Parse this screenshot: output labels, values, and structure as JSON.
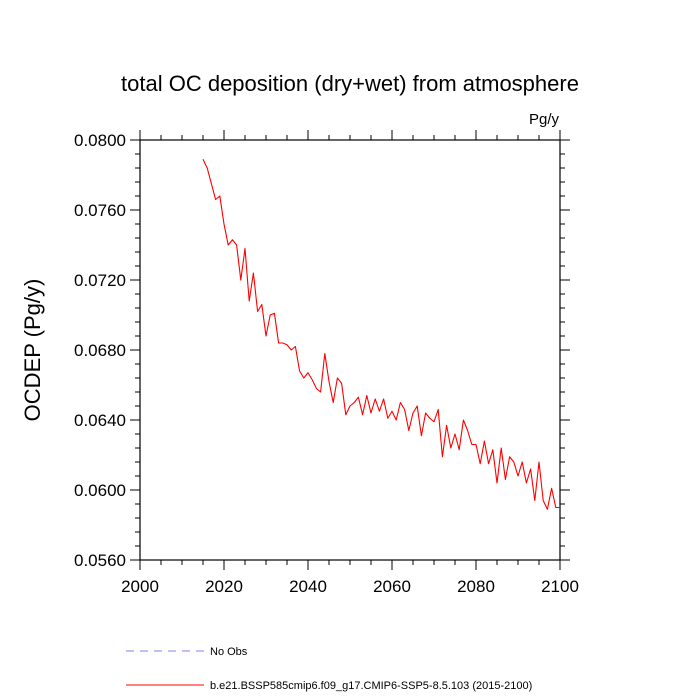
{
  "chart_data": {
    "type": "line",
    "title": "total OC deposition (dry+wet) from atmosphere",
    "units": "Pg/y",
    "xlabel": "",
    "ylabel": "OCDEP  (Pg/y)",
    "xlim": [
      2000,
      2100
    ],
    "ylim": [
      0.056,
      0.08
    ],
    "xticks": [
      2000,
      2020,
      2040,
      2060,
      2080,
      2100
    ],
    "xtick_labels": [
      "2000",
      "2020",
      "2040",
      "2060",
      "2080",
      "2100"
    ],
    "yticks": [
      0.056,
      0.06,
      0.064,
      0.068,
      0.072,
      0.076,
      0.08
    ],
    "ytick_labels": [
      "0.0560",
      "0.0600",
      "0.0640",
      "0.0680",
      "0.0720",
      "0.0760",
      "0.0800"
    ],
    "grid": false,
    "legend_position": "bottom-left",
    "series": [
      {
        "name": "No Obs",
        "color": "#8080ff",
        "dash": true,
        "x": [],
        "values": []
      },
      {
        "name": "b.e21.BSSP585cmip6.f09_g17.CMIP6-SSP5-8.5.103 (2015-2100)",
        "color": "#ff0000",
        "dash": false,
        "x": [
          2015,
          2016,
          2017,
          2018,
          2019,
          2020,
          2021,
          2022,
          2023,
          2024,
          2025,
          2026,
          2027,
          2028,
          2029,
          2030,
          2031,
          2032,
          2033,
          2034,
          2035,
          2036,
          2037,
          2038,
          2039,
          2040,
          2041,
          2042,
          2043,
          2044,
          2045,
          2046,
          2047,
          2048,
          2049,
          2050,
          2051,
          2052,
          2053,
          2054,
          2055,
          2056,
          2057,
          2058,
          2059,
          2060,
          2061,
          2062,
          2063,
          2064,
          2065,
          2066,
          2067,
          2068,
          2069,
          2070,
          2071,
          2072,
          2073,
          2074,
          2075,
          2076,
          2077,
          2078,
          2079,
          2080,
          2081,
          2082,
          2083,
          2084,
          2085,
          2086,
          2087,
          2088,
          2089,
          2090,
          2091,
          2092,
          2093,
          2094,
          2095,
          2096,
          2097,
          2098,
          2099,
          2100
        ],
        "values": [
          0.0789,
          0.0784,
          0.0775,
          0.0766,
          0.0768,
          0.0752,
          0.074,
          0.0743,
          0.074,
          0.072,
          0.0738,
          0.0708,
          0.0724,
          0.0702,
          0.0706,
          0.0688,
          0.07,
          0.0701,
          0.0684,
          0.0684,
          0.0683,
          0.068,
          0.0682,
          0.0668,
          0.0664,
          0.0667,
          0.0663,
          0.0658,
          0.0656,
          0.0678,
          0.0662,
          0.065,
          0.0664,
          0.0661,
          0.0643,
          0.0648,
          0.065,
          0.0653,
          0.0643,
          0.0654,
          0.0644,
          0.0652,
          0.0645,
          0.0652,
          0.0641,
          0.0645,
          0.064,
          0.065,
          0.0646,
          0.0634,
          0.0644,
          0.0648,
          0.0631,
          0.0644,
          0.0641,
          0.0639,
          0.0646,
          0.0619,
          0.0637,
          0.0624,
          0.0632,
          0.0623,
          0.064,
          0.0634,
          0.0626,
          0.0626,
          0.0615,
          0.0628,
          0.0615,
          0.0623,
          0.0604,
          0.0624,
          0.0606,
          0.0619,
          0.0616,
          0.0608,
          0.0616,
          0.0604,
          0.0612,
          0.0594,
          0.0616,
          0.0594,
          0.0589,
          0.0601,
          0.059,
          0.059
        ]
      }
    ]
  }
}
